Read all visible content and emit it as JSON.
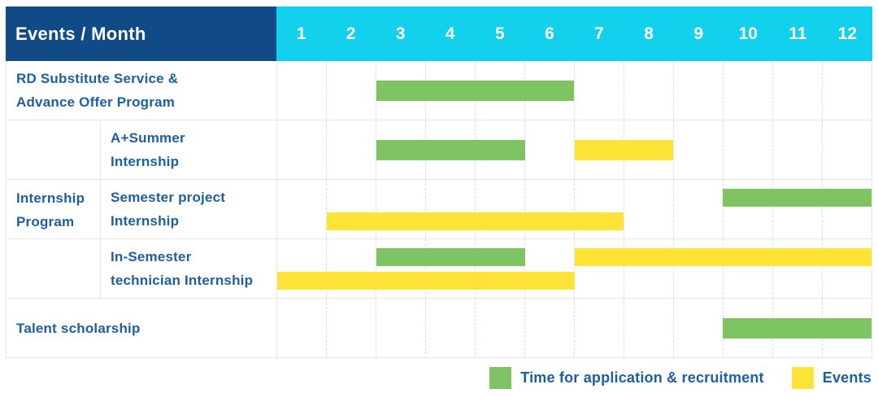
{
  "colors": {
    "header_dark_blue": "#104b87",
    "header_cyan": "#13d0ed",
    "green": "#7fc462",
    "yellow": "#ffe336",
    "text_blue": "#1d5fa3"
  },
  "chart_data": {
    "type": "table",
    "subtype": "gantt",
    "title": "Events / Month",
    "months": [
      "1",
      "2",
      "3",
      "4",
      "5",
      "6",
      "7",
      "8",
      "9",
      "10",
      "11",
      "12"
    ],
    "x_range": [
      1,
      12
    ],
    "legend_position": "bottom-right",
    "rows": [
      {
        "group": "",
        "label": "RD Substitute Service & Advance Offer Program",
        "label_lines": [
          "RD Substitute Service &",
          "Advance Offer Program"
        ],
        "bars": [
          {
            "type": "application",
            "start_month": 3,
            "end_month": 6,
            "line": 0
          }
        ]
      },
      {
        "group": "Internship Program",
        "label": "A+Summer Internship",
        "label_lines": [
          "A+Summer",
          "Internship"
        ],
        "bars": [
          {
            "type": "application",
            "start_month": 3,
            "end_month": 5,
            "line": 0
          },
          {
            "type": "event",
            "start_month": 7,
            "end_month": 8,
            "line": 0
          }
        ]
      },
      {
        "group": "Internship Program",
        "label": "Semester project Internship",
        "label_lines": [
          "Semester project",
          "Internship"
        ],
        "bars": [
          {
            "type": "application",
            "start_month": 10,
            "end_month": 12,
            "line": 0
          },
          {
            "type": "event",
            "start_month": 2,
            "end_month": 7,
            "line": 1
          }
        ]
      },
      {
        "group": "Internship Program",
        "label": "In-Semester technician Internship",
        "label_lines": [
          "In-Semester",
          "technician Internship"
        ],
        "bars": [
          {
            "type": "application",
            "start_month": 3,
            "end_month": 5,
            "line": 0
          },
          {
            "type": "event",
            "start_month": 7,
            "end_month": 12,
            "line": 0
          },
          {
            "type": "event",
            "start_month": 1,
            "end_month": 6,
            "line": 1
          }
        ]
      },
      {
        "group": "",
        "label": "Talent scholarship",
        "label_lines": [
          "Talent scholarship"
        ],
        "bars": [
          {
            "type": "application",
            "start_month": 10,
            "end_month": 12,
            "line": 0
          }
        ]
      }
    ],
    "group_label": "Internship Program",
    "group_label_lines": [
      "Internship",
      "Program"
    ],
    "legend": [
      {
        "type": "application",
        "label": "Time for application & recruitment",
        "color_key": "green"
      },
      {
        "type": "event",
        "label": "Events",
        "color_key": "yellow"
      }
    ]
  }
}
